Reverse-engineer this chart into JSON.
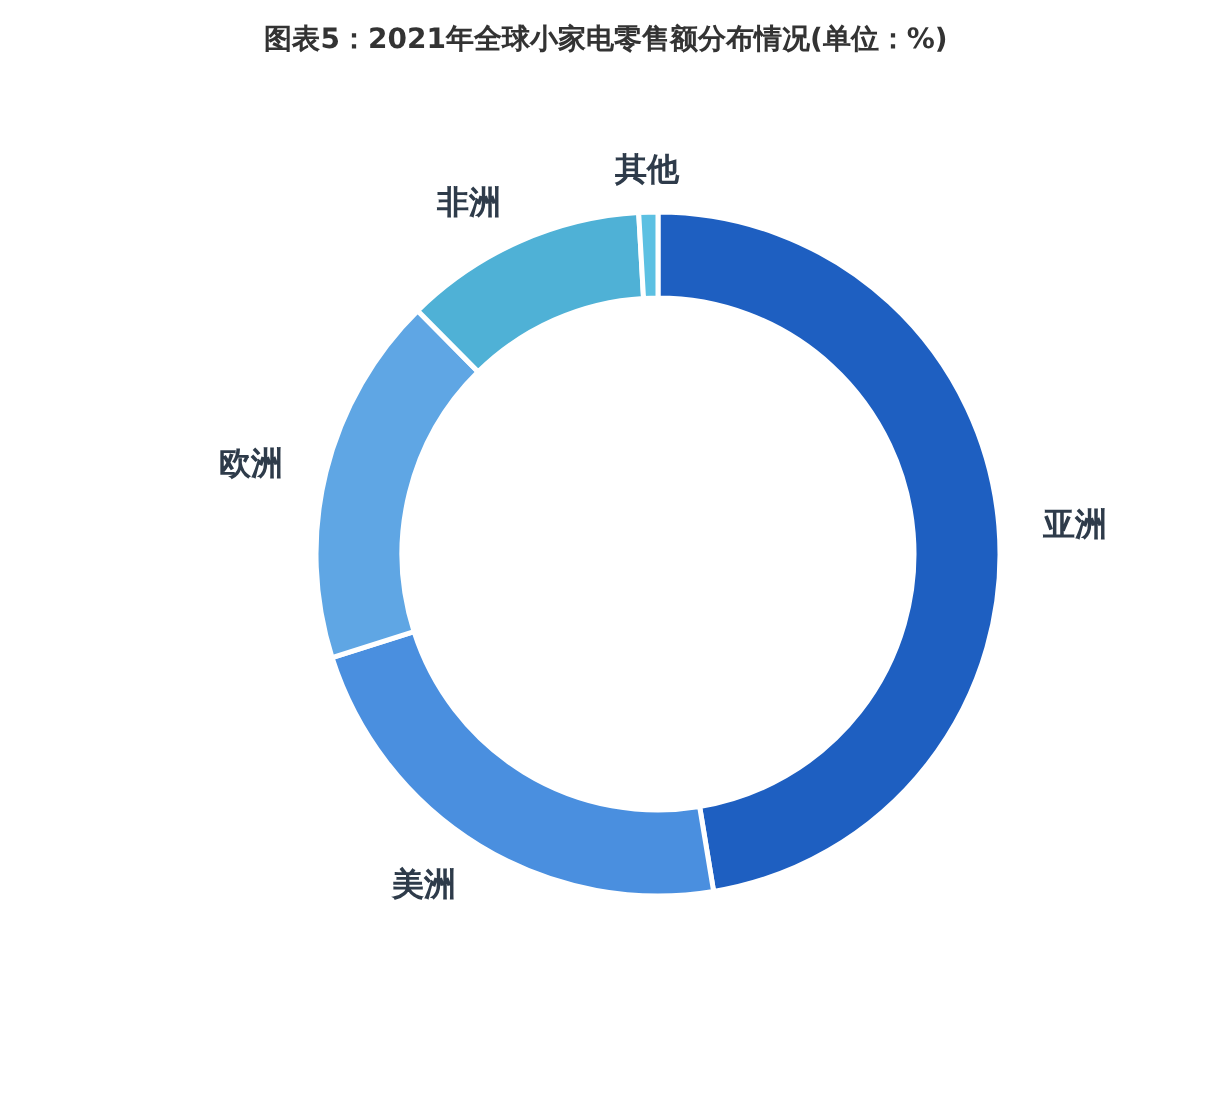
{
  "chart_data": {
    "type": "donut",
    "title": "图表5：2021年全球小家电零售额分布情况(单位：%)",
    "categories": [
      "亚洲",
      "美洲",
      "欧洲",
      "非洲",
      "其他"
    ],
    "values": [
      47.4,
      22.7,
      17.5,
      11.5,
      0.9
    ],
    "colors": [
      "#1e5fc1",
      "#4a8fdf",
      "#5fa6e4",
      "#4fb1d6",
      "#5cc0e2"
    ]
  }
}
